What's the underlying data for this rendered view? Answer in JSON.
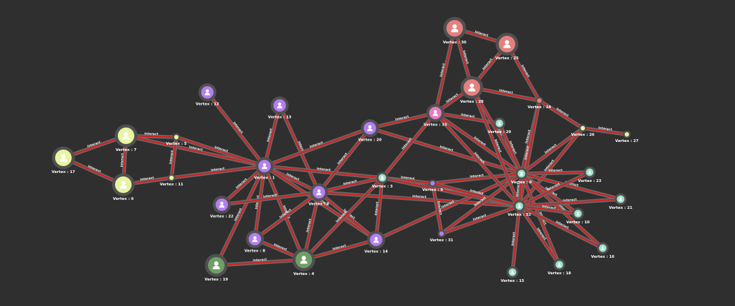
{
  "graph": {
    "edge_label": "Interact",
    "vertices": [
      {
        "id": "v0",
        "label": "Vertex : 0",
        "color": "#9de0c9",
        "size": "small"
      },
      {
        "id": "v1",
        "label": "Vertex : 1",
        "color": "#b37ff0",
        "size": "medium"
      },
      {
        "id": "v2",
        "label": "Vertex : 2",
        "color": "#b37ff0",
        "size": "medium"
      },
      {
        "id": "v3",
        "label": "Vertex : 3",
        "color": "#9de0c9",
        "size": "small"
      },
      {
        "id": "v4",
        "label": "Vertex : 4",
        "color": "#6f9f66",
        "size": "large"
      },
      {
        "id": "v5",
        "label": "Vertex : 5",
        "color": "#e8f4a0",
        "size": "tiny"
      },
      {
        "id": "v6",
        "label": "Vertex : 6",
        "color": "#e8f4a0",
        "size": "large"
      },
      {
        "id": "v7",
        "label": "Vertex : 7",
        "color": "#e8f4a0",
        "size": "large"
      },
      {
        "id": "v8",
        "label": "Vertex : 8",
        "color": "#b37ff0",
        "size": "medium"
      },
      {
        "id": "v9",
        "label": "Vertex : 9",
        "color": "#b37ff0",
        "size": "tiny"
      },
      {
        "id": "v10",
        "label": "Vertex : 10",
        "color": "#9de0c9",
        "size": "small"
      },
      {
        "id": "v11",
        "label": "Vertex : 11",
        "color": "#e8f4a0",
        "size": "tiny"
      },
      {
        "id": "v12",
        "label": "Vertex : 12",
        "color": "#b37ff0",
        "size": "medium"
      },
      {
        "id": "v13",
        "label": "Vertex : 13",
        "color": "#b37ff0",
        "size": "medium"
      },
      {
        "id": "v14",
        "label": "Vertex : 14",
        "color": "#b37ff0",
        "size": "medium"
      },
      {
        "id": "v15",
        "label": "Vertex : 15",
        "color": "#9de0c9",
        "size": "small"
      },
      {
        "id": "v16",
        "label": "Vertex : 16",
        "color": "#9de0c9",
        "size": "small"
      },
      {
        "id": "v17",
        "label": "Vertex : 17",
        "color": "#e8f4a0",
        "size": "large"
      },
      {
        "id": "v18",
        "label": "Vertex : 18",
        "color": "#9de0c9",
        "size": "small"
      },
      {
        "id": "v19",
        "label": "Vertex : 19",
        "color": "#6f9f66",
        "size": "large"
      },
      {
        "id": "v20",
        "label": "Vertex : 20",
        "color": "#b37ff0",
        "size": "medium"
      },
      {
        "id": "v21",
        "label": "Vertex : 21",
        "color": "#9de0c9",
        "size": "small"
      },
      {
        "id": "v22",
        "label": "Vertex : 22",
        "color": "#b37ff0",
        "size": "medium"
      },
      {
        "id": "v23",
        "label": "Vertex : 23",
        "color": "#9de0c9",
        "size": "small"
      },
      {
        "id": "v24",
        "label": "Vertex : 24",
        "color": "#e58080",
        "size": "tiny"
      },
      {
        "id": "v25",
        "label": "Vertex : 25",
        "color": "#e58080",
        "size": "large"
      },
      {
        "id": "v26",
        "label": "Vertex : 26",
        "color": "#e8f4a0",
        "size": "tiny"
      },
      {
        "id": "v27",
        "label": "Vertex : 27",
        "color": "#e8f4a0",
        "size": "tiny"
      },
      {
        "id": "v28",
        "label": "Vertex : 28",
        "color": "#e58080",
        "size": "large"
      },
      {
        "id": "v29",
        "label": "Vertex : 29",
        "color": "#9de0c9",
        "size": "small"
      },
      {
        "id": "v30",
        "label": "Vertex : 30",
        "color": "#e58080",
        "size": "large"
      },
      {
        "id": "v31",
        "label": "Vertex : 31",
        "color": "#b37ff0",
        "size": "tiny"
      },
      {
        "id": "v32",
        "label": "Vertex : 32",
        "color": "#9de0c9",
        "size": "small"
      },
      {
        "id": "v33",
        "label": "Vertex : 33",
        "color": "#e87ac0",
        "size": "medium"
      }
    ],
    "edges": [
      [
        "v17",
        "v7"
      ],
      [
        "v17",
        "v6"
      ],
      [
        "v7",
        "v5"
      ],
      [
        "v7",
        "v6"
      ],
      [
        "v7",
        "v1"
      ],
      [
        "v5",
        "v11"
      ],
      [
        "v5",
        "v1"
      ],
      [
        "v6",
        "v11"
      ],
      [
        "v11",
        "v1"
      ],
      [
        "v12",
        "v1"
      ],
      [
        "v13",
        "v1"
      ],
      [
        "v13",
        "v2"
      ],
      [
        "v1",
        "v20"
      ],
      [
        "v1",
        "v22"
      ],
      [
        "v1",
        "v8"
      ],
      [
        "v1",
        "v2"
      ],
      [
        "v1",
        "v3"
      ],
      [
        "v1",
        "v19"
      ],
      [
        "v1",
        "v4"
      ],
      [
        "v1",
        "v14"
      ],
      [
        "v22",
        "v2"
      ],
      [
        "v2",
        "v8"
      ],
      [
        "v2",
        "v4"
      ],
      [
        "v2",
        "v20"
      ],
      [
        "v2",
        "v3"
      ],
      [
        "v2",
        "v14"
      ],
      [
        "v2",
        "v32"
      ],
      [
        "v8",
        "v4"
      ],
      [
        "v19",
        "v4"
      ],
      [
        "v4",
        "v3"
      ],
      [
        "v4",
        "v14"
      ],
      [
        "v14",
        "v3"
      ],
      [
        "v14",
        "v0"
      ],
      [
        "v20",
        "v33"
      ],
      [
        "v20",
        "v0"
      ],
      [
        "v3",
        "v9"
      ],
      [
        "v3",
        "v33"
      ],
      [
        "v3",
        "v32"
      ],
      [
        "v9",
        "v0"
      ],
      [
        "v9",
        "v31"
      ],
      [
        "v9",
        "v32"
      ],
      [
        "v31",
        "v0"
      ],
      [
        "v31",
        "v32"
      ],
      [
        "v33",
        "v30"
      ],
      [
        "v33",
        "v28"
      ],
      [
        "v33",
        "v29"
      ],
      [
        "v33",
        "v0"
      ],
      [
        "v33",
        "v32"
      ],
      [
        "v30",
        "v25"
      ],
      [
        "v30",
        "v28"
      ],
      [
        "v25",
        "v28"
      ],
      [
        "v25",
        "v24"
      ],
      [
        "v28",
        "v24"
      ],
      [
        "v28",
        "v0"
      ],
      [
        "v28",
        "v32"
      ],
      [
        "v29",
        "v0"
      ],
      [
        "v24",
        "v0"
      ],
      [
        "v24",
        "v32"
      ],
      [
        "v24",
        "v26"
      ],
      [
        "v26",
        "v27"
      ],
      [
        "v26",
        "v0"
      ],
      [
        "v26",
        "v32"
      ],
      [
        "v0",
        "v23"
      ],
      [
        "v0",
        "v21"
      ],
      [
        "v0",
        "v10"
      ],
      [
        "v0",
        "v16"
      ],
      [
        "v0",
        "v18"
      ],
      [
        "v0",
        "v32"
      ],
      [
        "v32",
        "v23"
      ],
      [
        "v32",
        "v21"
      ],
      [
        "v32",
        "v10"
      ],
      [
        "v32",
        "v16"
      ],
      [
        "v32",
        "v15"
      ],
      [
        "v32",
        "v18"
      ]
    ]
  }
}
